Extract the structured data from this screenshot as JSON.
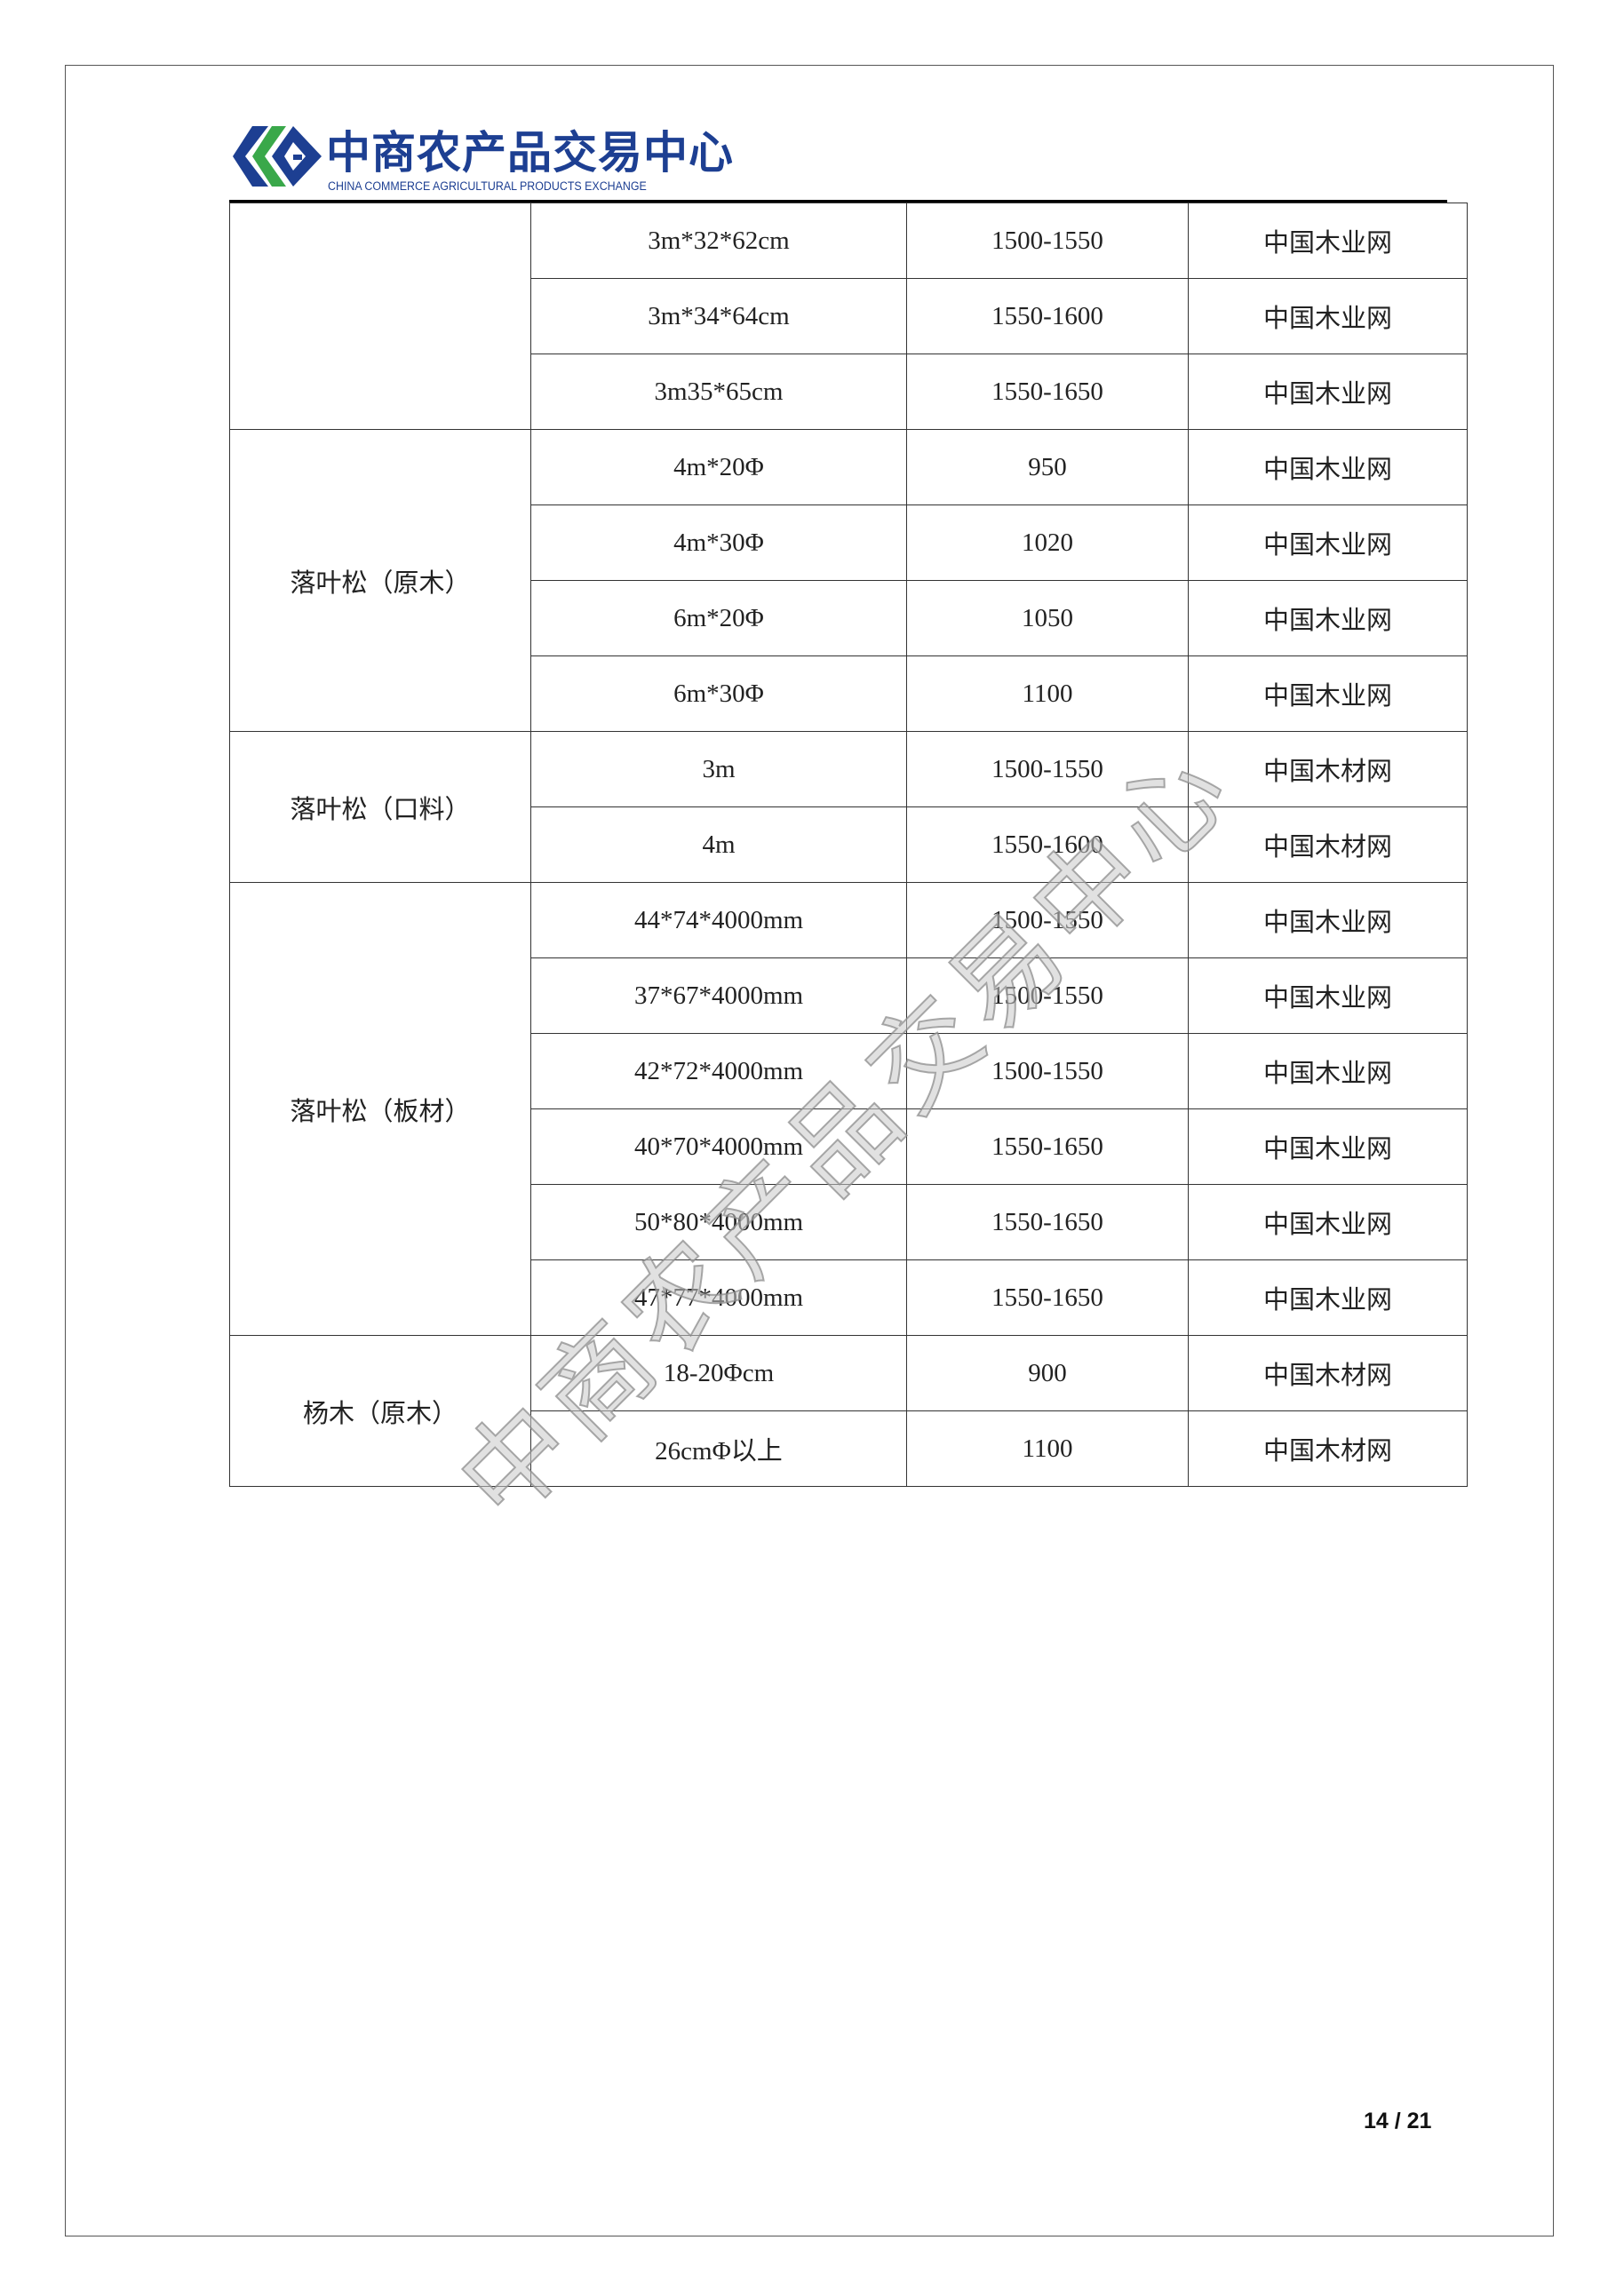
{
  "header": {
    "logo_cn": "中商农产品交易中心",
    "logo_en": "CHINA COMMERCE AGRICULTURAL PRODUCTS EXCHANGE",
    "brand_colors": {
      "blue": "#1d3f92",
      "green": "#3aa84a"
    }
  },
  "table": {
    "groups": [
      {
        "name": "",
        "rows": [
          {
            "spec": "3m*32*62cm",
            "price": "1500-1550",
            "source": "中国木业网"
          },
          {
            "spec": "3m*34*64cm",
            "price": "1550-1600",
            "source": "中国木业网"
          },
          {
            "spec": "3m35*65cm",
            "price": "1550-1650",
            "source": "中国木业网"
          }
        ]
      },
      {
        "name": "落叶松（原木）",
        "rows": [
          {
            "spec": "4m*20Φ",
            "price": "950",
            "source": "中国木业网"
          },
          {
            "spec": "4m*30Φ",
            "price": "1020",
            "source": "中国木业网"
          },
          {
            "spec": "6m*20Φ",
            "price": "1050",
            "source": "中国木业网"
          },
          {
            "spec": "6m*30Φ",
            "price": "1100",
            "source": "中国木业网"
          }
        ]
      },
      {
        "name": "落叶松（口料）",
        "rows": [
          {
            "spec": "3m",
            "price": "1500-1550",
            "source": "中国木材网"
          },
          {
            "spec": "4m",
            "price": "1550-1600",
            "source": "中国木材网"
          }
        ]
      },
      {
        "name": "落叶松（板材）",
        "rows": [
          {
            "spec": "44*74*4000mm",
            "price": "1500-1550",
            "source": "中国木业网"
          },
          {
            "spec": "37*67*4000mm",
            "price": "1500-1550",
            "source": "中国木业网"
          },
          {
            "spec": "42*72*4000mm",
            "price": "1500-1550",
            "source": "中国木业网"
          },
          {
            "spec": "40*70*4000mm",
            "price": "1550-1650",
            "source": "中国木业网"
          },
          {
            "spec": "50*80*4000mm",
            "price": "1550-1650",
            "source": "中国木业网"
          },
          {
            "spec": "47*77*4000mm",
            "price": "1550-1650",
            "source": "中国木业网"
          }
        ]
      },
      {
        "name": "杨木（原木）",
        "rows": [
          {
            "spec": "18-20Φcm",
            "price": "900",
            "source": "中国木材网"
          },
          {
            "spec": "26cmΦ以上",
            "price": "1100",
            "source": "中国木材网"
          }
        ]
      }
    ]
  },
  "watermark": "中商农产品交易中心",
  "footer": {
    "page_number": "14 / 21"
  }
}
